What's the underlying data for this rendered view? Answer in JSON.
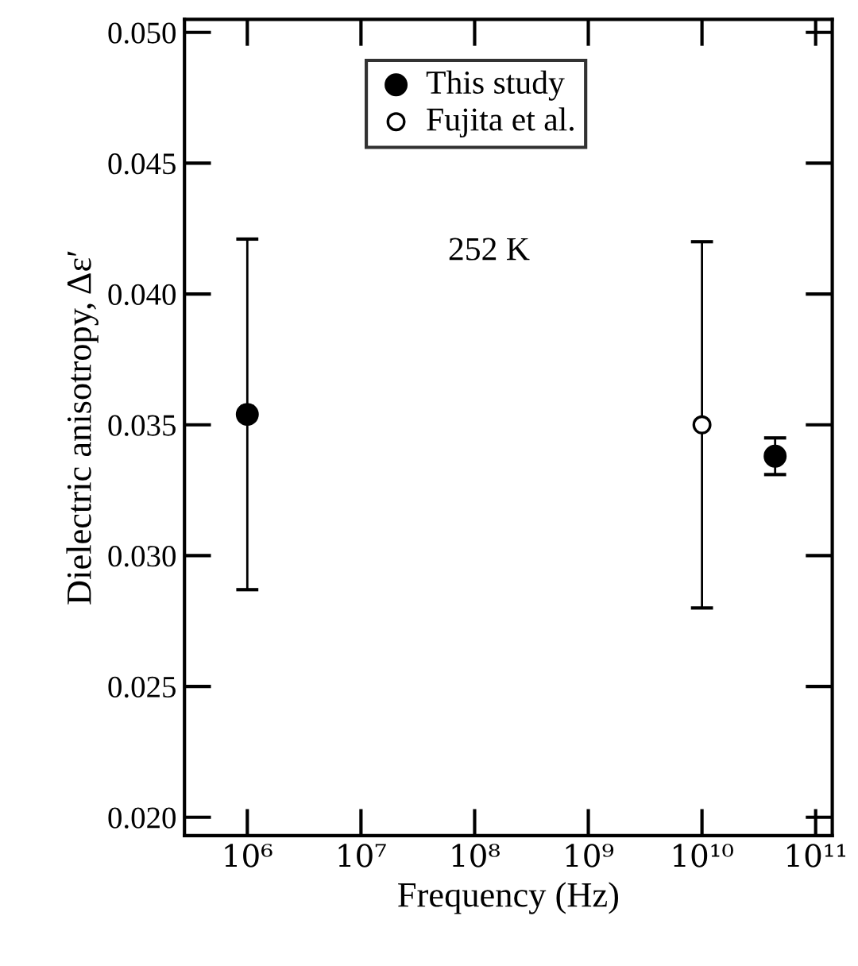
{
  "chart_data": {
    "type": "scatter",
    "xlabel": "Frequency (Hz)",
    "ylabel": "Dielectric anisotropy, Δε′",
    "log": "x",
    "xlim": [
      280000,
      140000000000
    ],
    "ylim": [
      0.0193,
      0.0505
    ],
    "xticks": [
      {
        "value": 1000000,
        "label": "10⁶"
      },
      {
        "value": 10000000,
        "label": "10⁷"
      },
      {
        "value": 100000000,
        "label": "10⁸"
      },
      {
        "value": 1000000000,
        "label": "10⁹"
      },
      {
        "value": 10000000000,
        "label": "10¹⁰"
      },
      {
        "value": 100000000000,
        "label": "10¹¹"
      }
    ],
    "yticks": [
      {
        "value": 0.02,
        "label": "0.020"
      },
      {
        "value": 0.025,
        "label": "0.025"
      },
      {
        "value": 0.03,
        "label": "0.030"
      },
      {
        "value": 0.035,
        "label": "0.035"
      },
      {
        "value": 0.04,
        "label": "0.040"
      },
      {
        "value": 0.045,
        "label": "0.045"
      },
      {
        "value": 0.05,
        "label": "0.050"
      }
    ],
    "marker": "circle",
    "grid": false,
    "legend": "top",
    "annotations": [
      "252 K"
    ],
    "series": [
      {
        "name": "This study",
        "color": "#000000",
        "x": [
          1000000,
          44000000000
        ],
        "values": [
          0.0354,
          0.0338
        ],
        "errors": [
          [
            0.0287,
            0.0421
          ],
          [
            0.0331,
            0.0345
          ]
        ]
      },
      {
        "name": "Fujita et al.",
        "color": "#ffffff",
        "x": [
          10000000000
        ],
        "values": [
          0.035
        ],
        "errors": [
          [
            0.028,
            0.042
          ]
        ]
      }
    ]
  }
}
